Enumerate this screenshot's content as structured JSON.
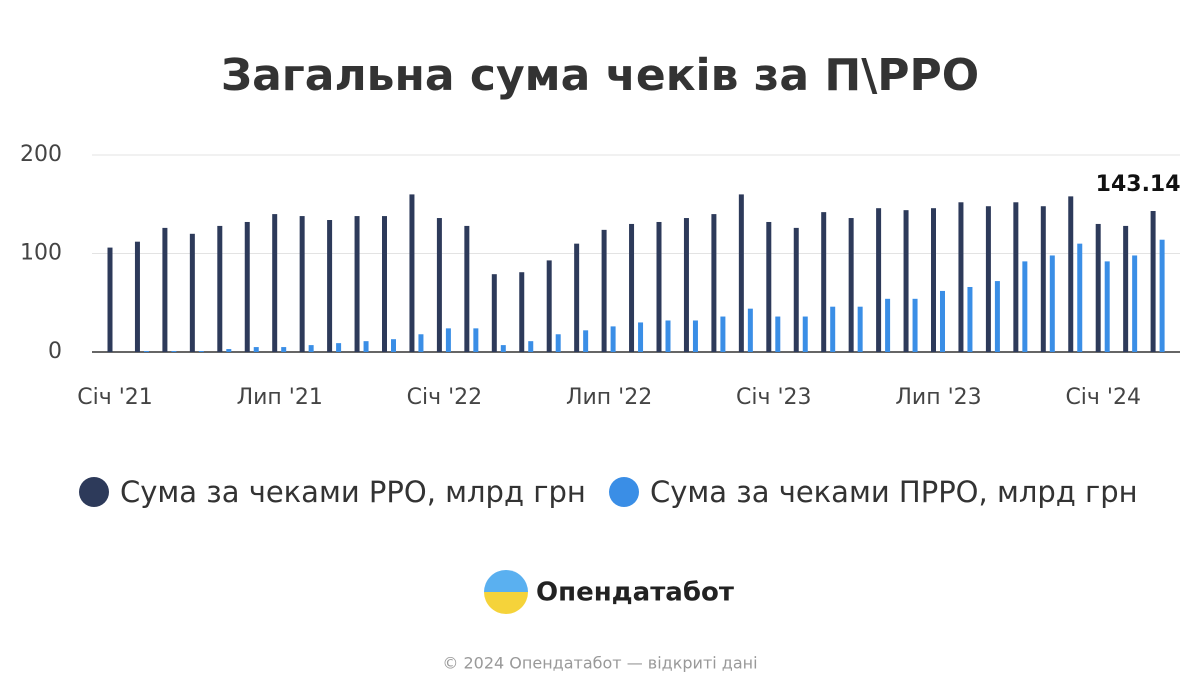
{
  "chart_data": {
    "type": "bar",
    "title": "Загальна сума чеків за П\\РРО",
    "categories": [
      "Січ '21",
      null,
      null,
      null,
      null,
      null,
      "Лип '21",
      null,
      null,
      null,
      null,
      null,
      "Січ '22",
      null,
      null,
      null,
      null,
      null,
      "Лип '22",
      null,
      null,
      null,
      null,
      null,
      "Січ '23",
      null,
      null,
      null,
      null,
      null,
      "Лип '23",
      null,
      null,
      null,
      null,
      null,
      "Січ '24",
      null,
      null
    ],
    "series": [
      {
        "name": "Сума за чеками РРО, млрд грн",
        "color": "#2d3a5a",
        "values": [
          106,
          112,
          126,
          120,
          128,
          132,
          140,
          138,
          134,
          138,
          138,
          160,
          136,
          128,
          79,
          81,
          93,
          110,
          124,
          130,
          132,
          136,
          140,
          160,
          132,
          126,
          142,
          136,
          146,
          144,
          146,
          152,
          148,
          152,
          148,
          158,
          130,
          128,
          143.14
        ],
        "value_labels": [
          null,
          null,
          null,
          null,
          null,
          null,
          null,
          null,
          null,
          null,
          null,
          null,
          null,
          null,
          null,
          null,
          null,
          null,
          null,
          null,
          null,
          null,
          null,
          null,
          null,
          null,
          null,
          null,
          null,
          null,
          null,
          null,
          null,
          null,
          null,
          null,
          null,
          null,
          "143.14"
        ]
      },
      {
        "name": "Сума за чеками ПРРО, млрд грн",
        "color": "#3a8ee6",
        "values": [
          0,
          1,
          1,
          1,
          3,
          5,
          5,
          7,
          9,
          11,
          13,
          18,
          24,
          24,
          7,
          11,
          18,
          22,
          26,
          30,
          32,
          32,
          36,
          44,
          36,
          36,
          46,
          46,
          54,
          54,
          62,
          66,
          72,
          92,
          98,
          110,
          92,
          98,
          114
        ]
      }
    ],
    "ylim": [
      0,
      200
    ],
    "yticks": [
      0,
      100,
      200
    ],
    "grid": true
  },
  "brand": "Опендатабот",
  "footer": "© 2024 Опендатабот — відкриті дані"
}
